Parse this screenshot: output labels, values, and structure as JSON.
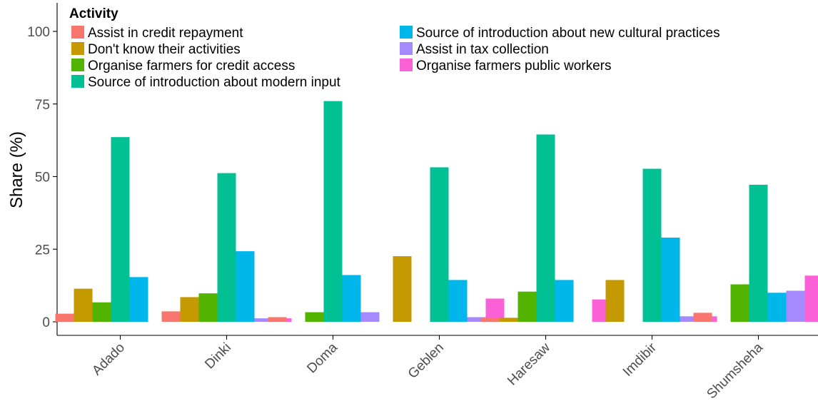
{
  "chart_data": {
    "type": "bar",
    "title": "",
    "xlabel": "",
    "ylabel": "Share (%)",
    "ylim": [
      -2.5,
      111
    ],
    "y_ticks": [
      0,
      25,
      50,
      75,
      100
    ],
    "grid": false,
    "legend": {
      "title": "Activity",
      "placement": "top-left, inside plot"
    },
    "categories": [
      "Adado",
      "Dinki",
      "Doma",
      "Geblen",
      "Haresaw",
      "Imdibir",
      "Shumsheha"
    ],
    "series": [
      {
        "name": "Assist in credit repayment",
        "color": "#F8766D",
        "values": [
          2.8,
          3.6,
          1.6,
          0,
          1.4,
          0,
          3.1
        ]
      },
      {
        "name": "Don't know their activities",
        "color": "#C49A00",
        "values": [
          11.4,
          8.5,
          0,
          22.6,
          1.4,
          14.4,
          0
        ]
      },
      {
        "name": "Organise farmers for credit access",
        "color": "#53B400",
        "values": [
          6.7,
          9.8,
          3.3,
          0,
          10.4,
          0,
          12.9
        ]
      },
      {
        "name": "Source of introduction about modern input",
        "color": "#00C094",
        "values": [
          63.6,
          51.2,
          76.0,
          53.2,
          64.5,
          52.7,
          47.2
        ]
      },
      {
        "name": "Source of introduction about new cultural practices",
        "color": "#00B6EB",
        "values": [
          15.4,
          24.3,
          16.1,
          14.4,
          14.4,
          29.0,
          10.0
        ]
      },
      {
        "name": "Assist in tax collection",
        "color": "#A58AFF",
        "values": [
          0,
          1.2,
          3.3,
          1.6,
          0,
          1.9,
          10.7
        ]
      },
      {
        "name": "Organise farmers public workers",
        "color": "#FB61D7",
        "values": [
          0,
          1.2,
          0,
          8.0,
          7.7,
          1.9,
          15.9
        ]
      }
    ]
  }
}
